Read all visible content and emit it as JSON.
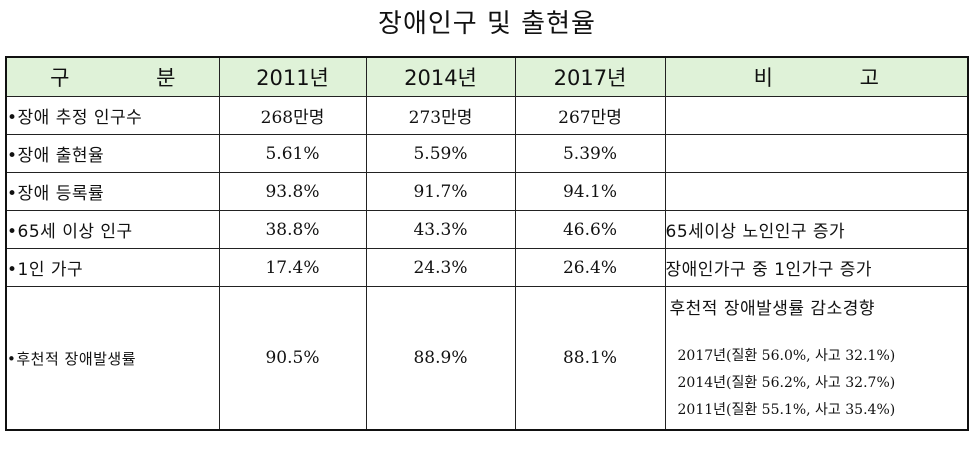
{
  "title": "장애인구 및 출현율",
  "header": {
    "category": "구 분",
    "year1": "2011년",
    "year2": "2014년",
    "year3": "2017년",
    "remarks": "비 고"
  },
  "rows": [
    {
      "label": "•장애 추정 인구수",
      "v2011": "268만명",
      "v2014": "273만명",
      "v2017": "267만명",
      "note": ""
    },
    {
      "label": "•장애 출현율",
      "v2011": "5.61%",
      "v2014": "5.59%",
      "v2017": "5.39%",
      "note": ""
    },
    {
      "label": "•장애 등록률",
      "v2011": "93.8%",
      "v2014": "91.7%",
      "v2017": "94.1%",
      "note": ""
    },
    {
      "label": "•65세 이상 인구",
      "v2011": "38.8%",
      "v2014": "43.3%",
      "v2017": "46.6%",
      "note": "65세이상 노인인구 증가"
    },
    {
      "label": "•1인 가구",
      "v2011": "17.4%",
      "v2014": "24.3%",
      "v2017": "26.4%",
      "note": "장애인가구 중 1인가구 증가"
    },
    {
      "label": "•후천적 장애발생률",
      "v2011": "90.5%",
      "v2014": "88.9%",
      "v2017": "88.1%",
      "note": "후천적 장애발생률 감소경향",
      "note_lines": [
        "2017년(질환 56.0%, 사고 32.1%)",
        "2014년(질환 56.2%, 사고 32.7%)",
        "2011년(질환 55.1%, 사고 35.4%)"
      ]
    }
  ]
}
